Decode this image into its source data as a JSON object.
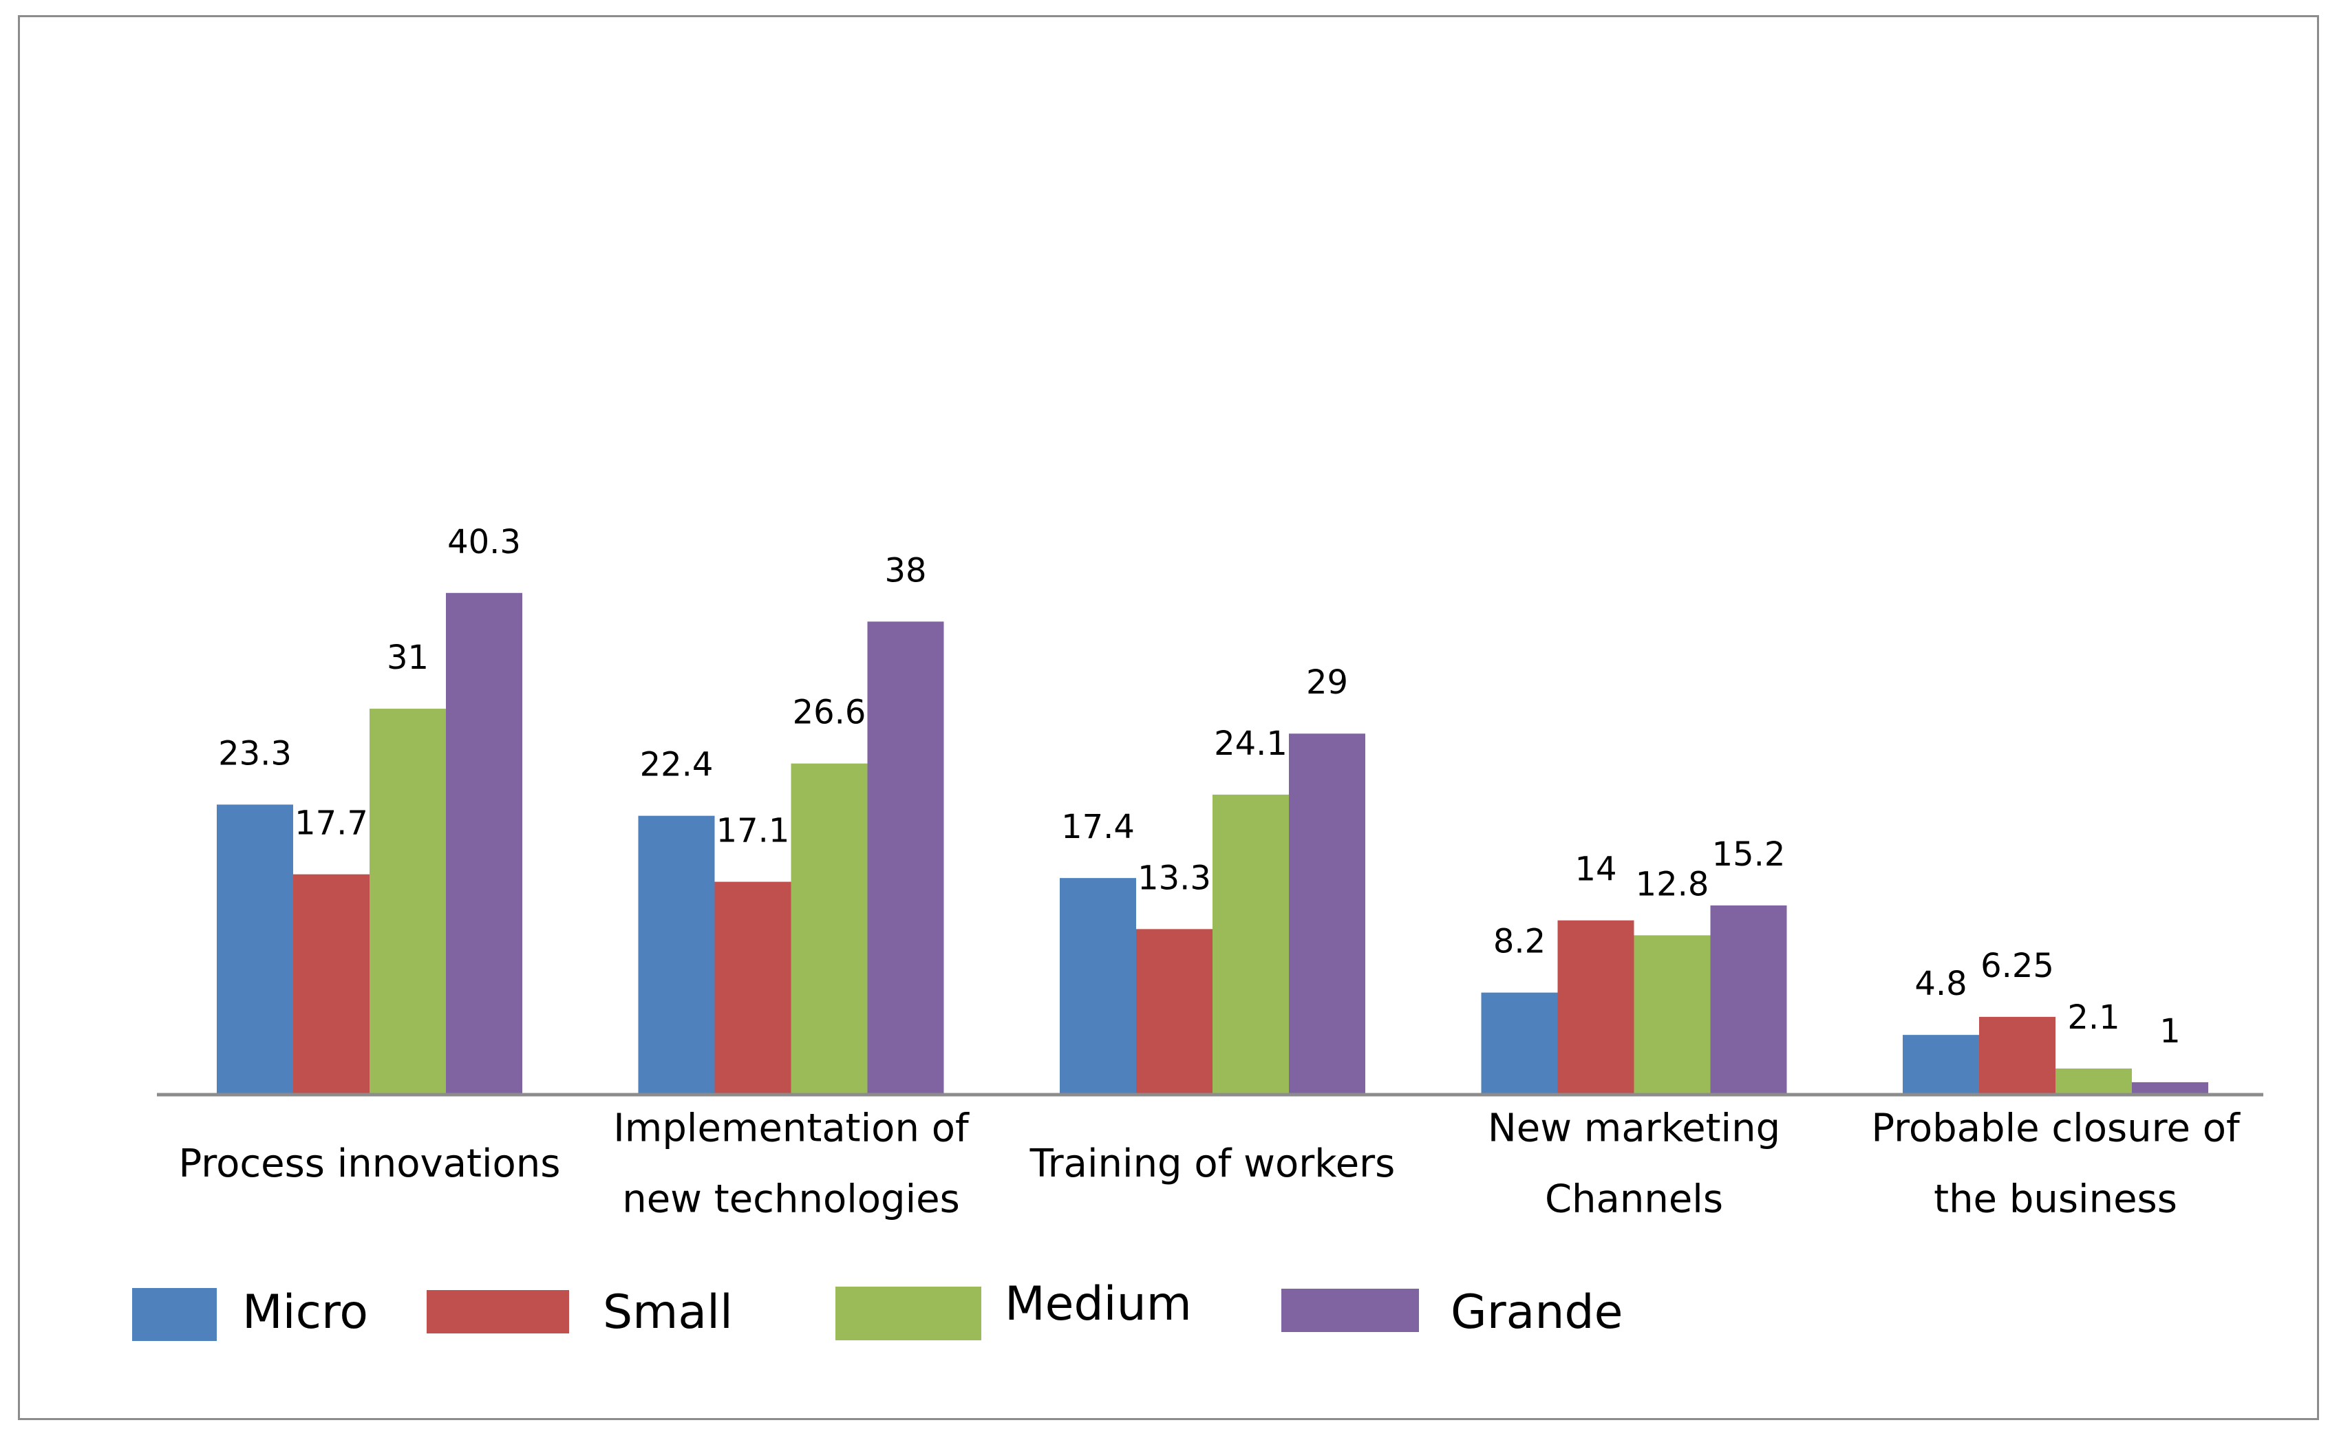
{
  "chart_data": {
    "type": "bar",
    "title": "",
    "xlabel": "",
    "ylabel": "",
    "ylim": [
      0,
      45
    ],
    "grid": false,
    "legend_position": "bottom",
    "categories": [
      [
        "Process innovations"
      ],
      [
        "Implementation  of",
        "new technologies"
      ],
      [
        "Training of workers"
      ],
      [
        "New marketing",
        "Channels"
      ],
      [
        "Probable closure of",
        "the business"
      ]
    ],
    "series": [
      {
        "name": "Micro",
        "color": "#4f81bd",
        "values": [
          23.3,
          22.4,
          17.4,
          8.2,
          4.8
        ],
        "labels": [
          "23.3",
          "22.4",
          "17.4",
          "8.2",
          "4.8"
        ]
      },
      {
        "name": "Small",
        "color": "#c0504d",
        "values": [
          17.7,
          17.1,
          13.3,
          14,
          6.25
        ],
        "labels": [
          "17.7",
          "17.1",
          "13.3",
          "14",
          "6.25"
        ]
      },
      {
        "name": "Medium",
        "color": "#9bbb59",
        "values": [
          31,
          26.6,
          24.1,
          12.8,
          2.1
        ],
        "labels": [
          "31",
          "26.6",
          "24.1",
          "12.8",
          "2.1"
        ]
      },
      {
        "name": "Grande",
        "color": "#8064a2",
        "values": [
          40.3,
          38,
          29,
          15.2,
          1
        ],
        "labels": [
          "40.3",
          "38",
          "29",
          "15.2",
          "1"
        ]
      }
    ]
  }
}
